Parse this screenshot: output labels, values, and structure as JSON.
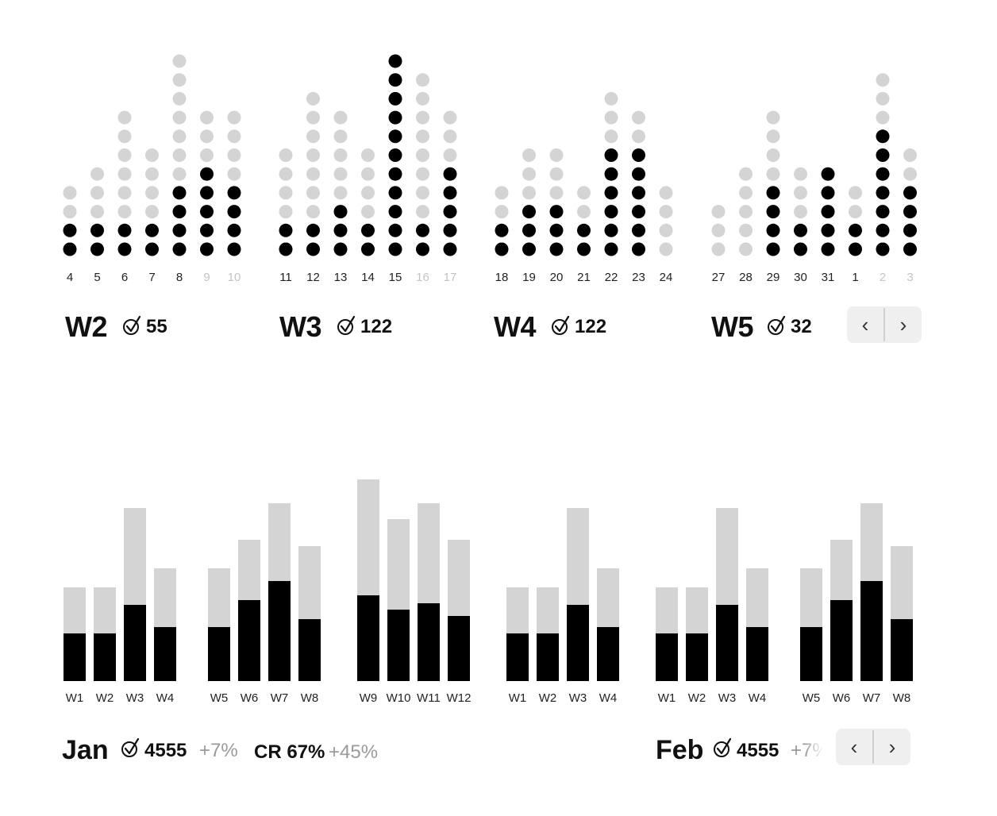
{
  "colors": {
    "done": "#000000",
    "pending": "#d4d4d4",
    "future_label": "#c4c4c4"
  },
  "icons": {
    "check": "check-circle-icon",
    "prev": "chevron-left-icon",
    "next": "chevron-right-icon"
  },
  "chart_data": [
    {
      "type": "dot-column",
      "groups": [
        {
          "title": "W2",
          "count": "55",
          "days": [
            {
              "label": "4",
              "done": 2,
              "total": 4
            },
            {
              "label": "5",
              "done": 2,
              "total": 5
            },
            {
              "label": "6",
              "done": 2,
              "total": 8
            },
            {
              "label": "7",
              "done": 2,
              "total": 6
            },
            {
              "label": "8",
              "done": 4,
              "total": 11
            },
            {
              "label": "9",
              "done": 5,
              "total": 8,
              "future": true
            },
            {
              "label": "10",
              "done": 4,
              "total": 8,
              "future": true
            }
          ]
        },
        {
          "title": "W3",
          "count": "122",
          "days": [
            {
              "label": "11",
              "done": 2,
              "total": 6
            },
            {
              "label": "12",
              "done": 2,
              "total": 9
            },
            {
              "label": "13",
              "done": 3,
              "total": 8
            },
            {
              "label": "14",
              "done": 2,
              "total": 6
            },
            {
              "label": "15",
              "done": 11,
              "total": 11
            },
            {
              "label": "16",
              "done": 2,
              "total": 10,
              "future": true
            },
            {
              "label": "17",
              "done": 5,
              "total": 8,
              "future": true
            }
          ]
        },
        {
          "title": "W4",
          "count": "122",
          "days": [
            {
              "label": "18",
              "done": 2,
              "total": 4
            },
            {
              "label": "19",
              "done": 3,
              "total": 6
            },
            {
              "label": "20",
              "done": 3,
              "total": 6
            },
            {
              "label": "21",
              "done": 2,
              "total": 4
            },
            {
              "label": "22",
              "done": 6,
              "total": 9
            },
            {
              "label": "23",
              "done": 6,
              "total": 8
            },
            {
              "label": "24",
              "done": 0,
              "total": 4
            }
          ]
        },
        {
          "title": "W5",
          "count": "32",
          "days": [
            {
              "label": "27",
              "done": 0,
              "total": 3
            },
            {
              "label": "28",
              "done": 0,
              "total": 5
            },
            {
              "label": "29",
              "done": 4,
              "total": 8
            },
            {
              "label": "30",
              "done": 2,
              "total": 5
            },
            {
              "label": "31",
              "done": 5,
              "total": 5
            },
            {
              "label": "1",
              "done": 2,
              "total": 4
            },
            {
              "label": "2",
              "done": 7,
              "total": 10,
              "future": true
            },
            {
              "label": "3",
              "done": 4,
              "total": 6,
              "future": true
            }
          ]
        }
      ]
    },
    {
      "type": "bar",
      "stacked": true,
      "groups": [
        {
          "bars": [
            {
              "label": "W1",
              "done": 60,
              "total": 118
            },
            {
              "label": "W2",
              "done": 60,
              "total": 118
            },
            {
              "label": "W3",
              "done": 96,
              "total": 218
            },
            {
              "label": "W4",
              "done": 68,
              "total": 142
            }
          ]
        },
        {
          "bars": [
            {
              "label": "W5",
              "done": 68,
              "total": 142
            },
            {
              "label": "W6",
              "done": 102,
              "total": 178
            },
            {
              "label": "W7",
              "done": 126,
              "total": 224
            },
            {
              "label": "W8",
              "done": 78,
              "total": 170
            }
          ]
        },
        {
          "bars": [
            {
              "label": "W9",
              "done": 108,
              "total": 254
            },
            {
              "label": "W10",
              "done": 90,
              "total": 204
            },
            {
              "label": "W11",
              "done": 98,
              "total": 224
            },
            {
              "label": "W12",
              "done": 82,
              "total": 178
            }
          ]
        },
        {
          "bars": [
            {
              "label": "W1",
              "done": 60,
              "total": 118
            },
            {
              "label": "W2",
              "done": 60,
              "total": 118
            },
            {
              "label": "W3",
              "done": 96,
              "total": 218
            },
            {
              "label": "W4",
              "done": 68,
              "total": 142
            }
          ]
        },
        {
          "bars": [
            {
              "label": "W1",
              "done": 60,
              "total": 118
            },
            {
              "label": "W2",
              "done": 60,
              "total": 118
            },
            {
              "label": "W3",
              "done": 96,
              "total": 218
            },
            {
              "label": "W4",
              "done": 68,
              "total": 142
            }
          ]
        },
        {
          "bars": [
            {
              "label": "W5",
              "done": 68,
              "total": 142
            },
            {
              "label": "W6",
              "done": 102,
              "total": 178
            },
            {
              "label": "W7",
              "done": 126,
              "total": 224
            },
            {
              "label": "W8",
              "done": 78,
              "total": 170
            }
          ]
        }
      ]
    }
  ],
  "weekly": {
    "w2": {
      "title": "W2",
      "count": "55"
    },
    "w3": {
      "title": "W3",
      "count": "122"
    },
    "w4": {
      "title": "W4",
      "count": "122"
    },
    "w5": {
      "title": "W5",
      "count": "32"
    },
    "check_glyph": "✓"
  },
  "monthly": {
    "jan": {
      "title": "Jan",
      "count": "4555",
      "delta": "+7%",
      "cr_label": "CR 67%",
      "cr_delta": "+45%"
    },
    "feb": {
      "title": "Feb",
      "count": "4555",
      "delta": "+7%"
    }
  },
  "nav": {
    "prev": "‹",
    "next": "›"
  }
}
